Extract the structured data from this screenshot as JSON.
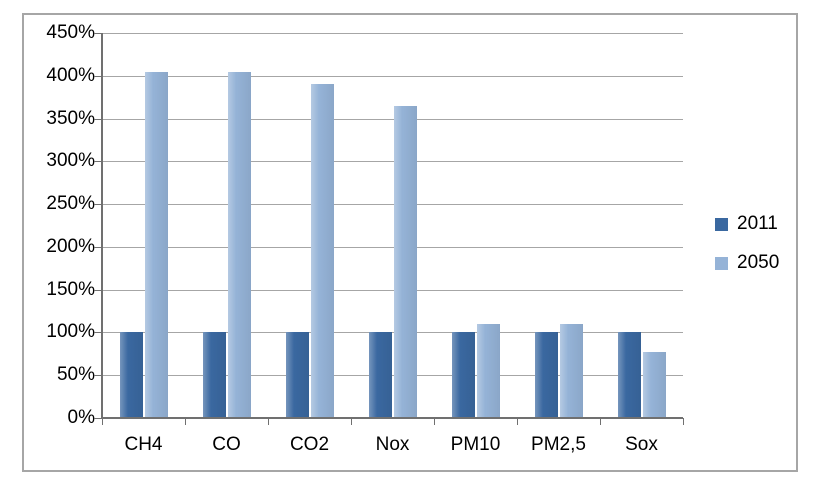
{
  "chart_data": {
    "type": "bar",
    "title": "",
    "categories": [
      "CH4",
      "CO",
      "CO2",
      "Nox",
      "PM10",
      "PM2,5",
      "Sox"
    ],
    "series": [
      {
        "name": "2011",
        "color": "#3A68A0",
        "values": [
          100,
          100,
          100,
          100,
          100,
          100,
          100
        ]
      },
      {
        "name": "2050",
        "color": "#95B3D7",
        "values": [
          405,
          405,
          390,
          365,
          110,
          110,
          77
        ]
      }
    ],
    "y_axis": {
      "min": 0,
      "max": 450,
      "step": 50,
      "tick_labels": [
        "0%",
        "50%",
        "100%",
        "150%",
        "200%",
        "250%",
        "300%",
        "350%",
        "400%",
        "450%"
      ]
    },
    "x_axis": {
      "labels": [
        "CH4",
        "CO",
        "CO2",
        "Nox",
        "PM10",
        "PM2,5",
        "Sox"
      ]
    },
    "grid": true,
    "legend_position": "right"
  },
  "colors": {
    "series_2011": "#3A68A0",
    "series_2050": "#95B3D7",
    "gridline": "#A6A6A6",
    "axis": "#707070",
    "frame_border": "#A6A6A6",
    "background": "#FFFFFF",
    "text": "#000000"
  }
}
